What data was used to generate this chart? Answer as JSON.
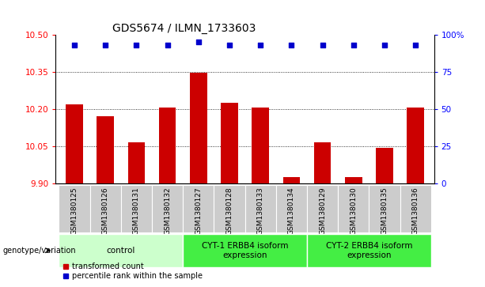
{
  "title": "GDS5674 / ILMN_1733603",
  "samples": [
    "GSM1380125",
    "GSM1380126",
    "GSM1380131",
    "GSM1380132",
    "GSM1380127",
    "GSM1380128",
    "GSM1380133",
    "GSM1380134",
    "GSM1380129",
    "GSM1380130",
    "GSM1380135",
    "GSM1380136"
  ],
  "bar_values": [
    10.22,
    10.17,
    10.065,
    10.205,
    10.345,
    10.225,
    10.205,
    9.925,
    10.065,
    9.925,
    10.045,
    10.205
  ],
  "percentile_values": [
    93,
    93,
    93,
    93,
    95,
    93,
    93,
    93,
    93,
    93,
    93,
    93
  ],
  "ylim_left": [
    9.9,
    10.5
  ],
  "yticks_left": [
    9.9,
    10.05,
    10.2,
    10.35,
    10.5
  ],
  "ylim_right": [
    0,
    100
  ],
  "yticks_right": [
    0,
    25,
    50,
    75,
    100
  ],
  "ytick_labels_right": [
    "0",
    "25",
    "50",
    "75",
    "100%"
  ],
  "bar_color": "#cc0000",
  "dot_color": "#0000cc",
  "groups": [
    {
      "label": "control",
      "start": 0,
      "end": 3,
      "color": "#ccffcc"
    },
    {
      "label": "CYT-1 ERBB4 isoform\nexpression",
      "start": 4,
      "end": 7,
      "color": "#44ee44"
    },
    {
      "label": "CYT-2 ERBB4 isoform\nexpression",
      "start": 8,
      "end": 11,
      "color": "#44ee44"
    }
  ],
  "xticklabel_bg": "#cccccc",
  "genotype_label": "genotype/variation",
  "legend_bar_label": "transformed count",
  "legend_dot_label": "percentile rank within the sample",
  "title_fontsize": 10,
  "tick_fontsize": 7.5,
  "bar_width": 0.55
}
